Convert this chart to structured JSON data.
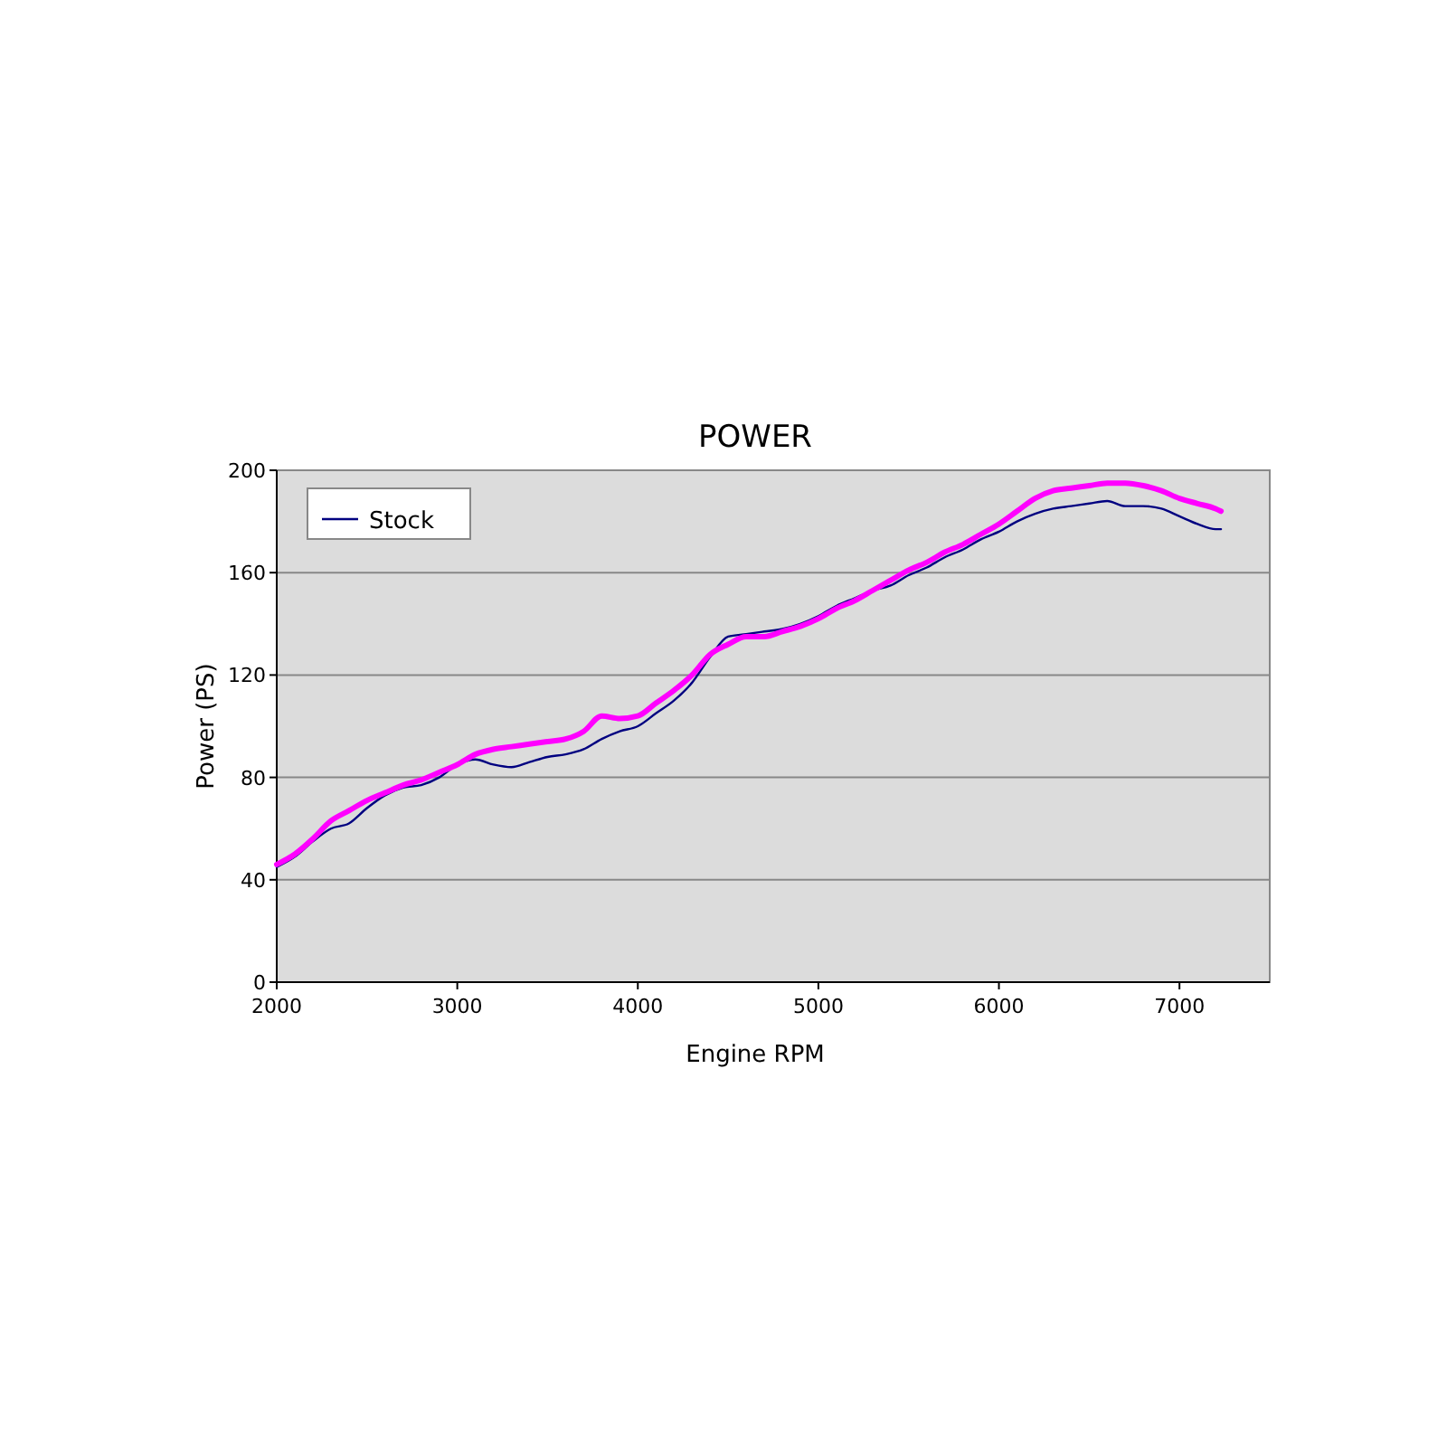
{
  "chart_data": {
    "type": "line",
    "title": "POWER",
    "xlabel": "Engine RPM",
    "ylabel": "Power (PS)",
    "x": [
      2000,
      2100,
      2200,
      2300,
      2400,
      2500,
      2600,
      2700,
      2800,
      2900,
      3000,
      3100,
      3200,
      3300,
      3400,
      3500,
      3600,
      3700,
      3800,
      3900,
      4000,
      4100,
      4200,
      4300,
      4400,
      4500,
      4600,
      4700,
      4800,
      4900,
      5000,
      5100,
      5200,
      5300,
      5400,
      5500,
      5600,
      5700,
      5800,
      5900,
      6000,
      6100,
      6200,
      6300,
      6400,
      6500,
      6600,
      6700,
      6800,
      6900,
      7000,
      7100,
      7200,
      7230
    ],
    "series": [
      {
        "name": "Stock",
        "color": "#000080",
        "values": [
          45,
          49,
          55,
          60,
          62,
          68,
          73,
          76,
          77,
          80,
          85,
          87,
          85,
          84,
          86,
          88,
          89,
          91,
          95,
          98,
          100,
          105,
          110,
          117,
          127,
          135,
          136,
          137,
          138,
          140,
          143,
          147,
          150,
          153,
          155,
          159,
          162,
          166,
          169,
          173,
          176,
          180,
          183,
          185,
          186,
          187,
          188,
          186,
          186,
          185,
          182,
          179,
          177,
          177
        ]
      },
      {
        "color": "#ff00ff",
        "values": [
          46,
          50,
          56,
          63,
          67,
          71,
          74,
          77,
          79,
          82,
          85,
          89,
          91,
          92,
          93,
          94,
          95,
          98,
          104,
          103,
          104,
          109,
          114,
          120,
          128,
          132,
          135,
          135,
          137,
          139,
          142,
          146,
          149,
          153,
          157,
          161,
          164,
          168,
          171,
          175,
          179,
          184,
          189,
          192,
          193,
          194,
          195,
          195,
          194,
          192,
          189,
          187,
          185,
          184
        ]
      }
    ],
    "xlim": [
      2000,
      7500
    ],
    "xticks": [
      2000,
      3000,
      4000,
      5000,
      6000,
      7000
    ],
    "ylim": [
      0,
      200
    ],
    "yticks": [
      0,
      40,
      80,
      120,
      160,
      200
    ],
    "grid": "y",
    "legend": "top left",
    "line_style": "solid"
  }
}
